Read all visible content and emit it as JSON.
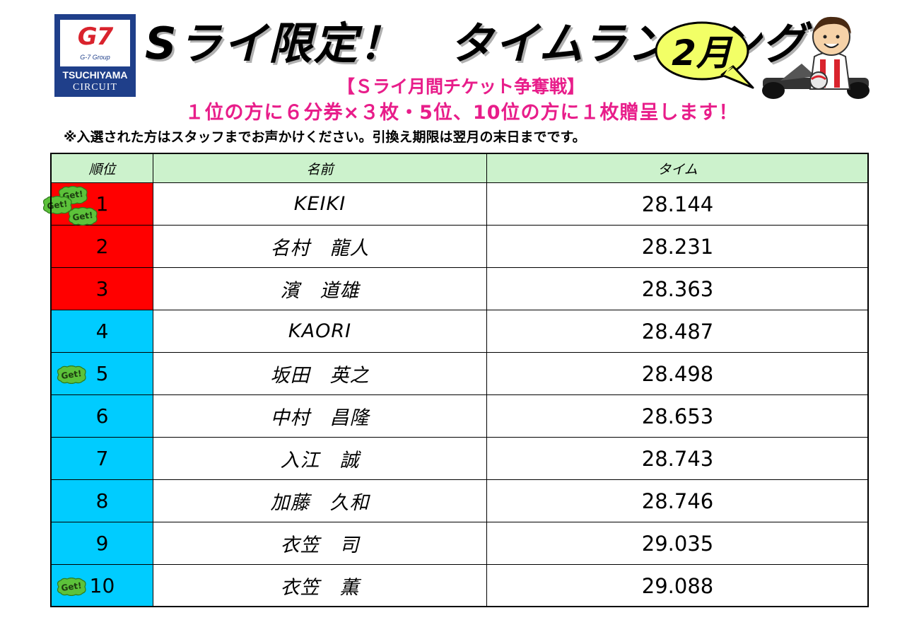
{
  "logo": {
    "brand": "G7",
    "group": "G-7 Group",
    "line1": "TSUCHIYAMA",
    "line2": "CIRCUIT"
  },
  "header": {
    "title": "Sライ限定！　タイムランキング",
    "month": "2月",
    "subtitle": "【Ｓライ月間チケット争奪戦】",
    "prize": "１位の方に６分券×３枚・5位、10位の方に１枚贈呈します！",
    "note": "※入選された方はスタッフまでお声かけください。引換え期限は翌月の末日までです。"
  },
  "table": {
    "headers": {
      "rank": "順位",
      "name": "名前",
      "time": "タイム"
    },
    "badge_text": "Get!",
    "rows": [
      {
        "rank": "1",
        "name": "KEIKI",
        "time": "28.144",
        "color": "#ff0000",
        "badges": 3
      },
      {
        "rank": "2",
        "name": "名村　龍人",
        "time": "28.231",
        "color": "#ff0000",
        "badges": 0
      },
      {
        "rank": "3",
        "name": "濱　道雄",
        "time": "28.363",
        "color": "#ff0000",
        "badges": 0
      },
      {
        "rank": "4",
        "name": "KAORI",
        "time": "28.487",
        "color": "#00ccff",
        "badges": 0
      },
      {
        "rank": "5",
        "name": "坂田　英之",
        "time": "28.498",
        "color": "#00ccff",
        "badges": 1
      },
      {
        "rank": "6",
        "name": "中村　昌隆",
        "time": "28.653",
        "color": "#00ccff",
        "badges": 0
      },
      {
        "rank": "7",
        "name": "入江　誠",
        "time": "28.743",
        "color": "#00ccff",
        "badges": 0
      },
      {
        "rank": "8",
        "name": "加藤　久和",
        "time": "28.746",
        "color": "#00ccff",
        "badges": 0
      },
      {
        "rank": "9",
        "name": "衣笠　司",
        "time": "29.035",
        "color": "#00ccff",
        "badges": 0
      },
      {
        "rank": "10",
        "name": "衣笠　薫",
        "time": "29.088",
        "color": "#00ccff",
        "badges": 1
      }
    ]
  },
  "colors": {
    "accent_pink": "#e81d8a",
    "header_green": "#ccf2cc",
    "top3_red": "#ff0000",
    "rest_blue": "#00ccff",
    "bubble_yellow": "#f2ff66",
    "badge_green": "#5cc23a"
  }
}
